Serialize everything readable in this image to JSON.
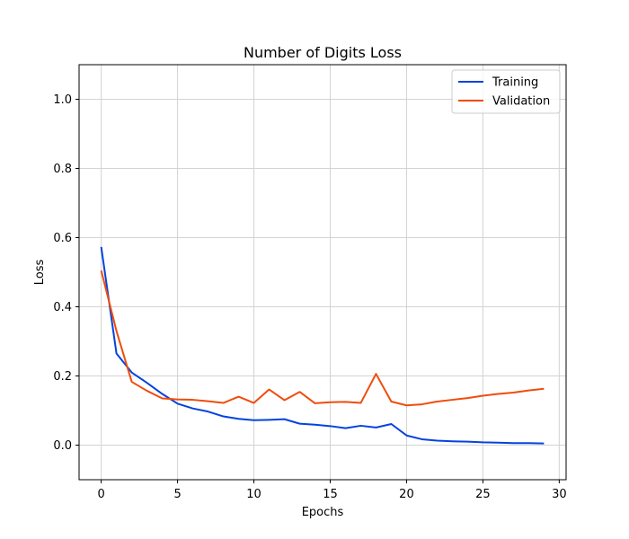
{
  "chart_data": {
    "type": "line",
    "title": "Number of Digits Loss",
    "xlabel": "Epochs",
    "ylabel": "Loss",
    "xlim": [
      -1.45,
      30.45
    ],
    "ylim": [
      -0.1,
      1.1
    ],
    "xticks": [
      0,
      5,
      10,
      15,
      20,
      25,
      30
    ],
    "yticks": [
      0.0,
      0.2,
      0.4,
      0.6,
      0.8,
      1.0
    ],
    "xtick_labels": [
      "0",
      "5",
      "10",
      "15",
      "20",
      "25",
      "30"
    ],
    "ytick_labels": [
      "0.0",
      "0.2",
      "0.4",
      "0.6",
      "0.8",
      "1.0"
    ],
    "grid": true,
    "legend_position": "top-right",
    "x": [
      0,
      1,
      2,
      3,
      4,
      5,
      6,
      7,
      8,
      9,
      10,
      11,
      12,
      13,
      14,
      15,
      16,
      17,
      18,
      19,
      20,
      21,
      22,
      23,
      24,
      25,
      26,
      27,
      28,
      29
    ],
    "series": [
      {
        "name": "Training",
        "color": "#0343df",
        "values": [
          0.573,
          0.265,
          0.21,
          0.18,
          0.148,
          0.12,
          0.106,
          0.097,
          0.083,
          0.076,
          0.072,
          0.073,
          0.075,
          0.062,
          0.059,
          0.055,
          0.049,
          0.056,
          0.051,
          0.061,
          0.028,
          0.017,
          0.013,
          0.011,
          0.01,
          0.008,
          0.007,
          0.006,
          0.006,
          0.005
        ]
      },
      {
        "name": "Validation",
        "color": "#f04c0b",
        "values": [
          0.505,
          0.33,
          0.183,
          0.157,
          0.135,
          0.132,
          0.131,
          0.127,
          0.122,
          0.14,
          0.122,
          0.161,
          0.13,
          0.154,
          0.121,
          0.124,
          0.125,
          0.122,
          0.206,
          0.126,
          0.115,
          0.118,
          0.126,
          0.131,
          0.136,
          0.143,
          0.148,
          0.152,
          0.158,
          0.163
        ]
      }
    ]
  }
}
